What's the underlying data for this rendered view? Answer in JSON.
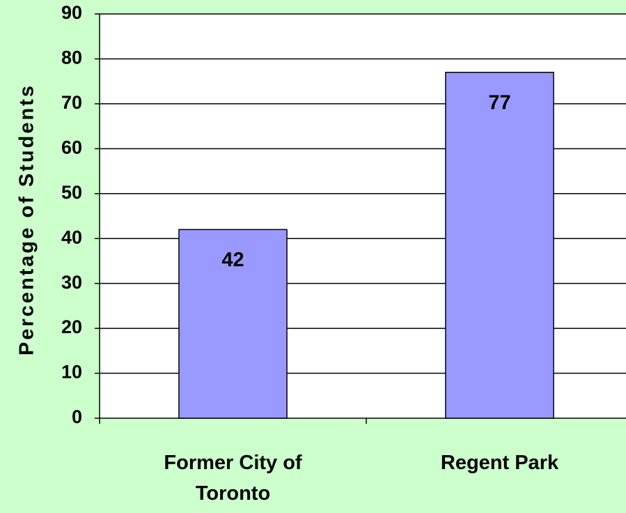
{
  "chart_data": {
    "type": "bar",
    "y_label": "Percentage of Students",
    "categories": [
      "Former City of Toronto",
      "Regent Park"
    ],
    "values": [
      42,
      77
    ],
    "color": "#9999ff",
    "ylim": [
      0,
      90
    ],
    "yticks": [
      0,
      10,
      20,
      30,
      40,
      50,
      60,
      70,
      80,
      90
    ],
    "grid": true
  }
}
